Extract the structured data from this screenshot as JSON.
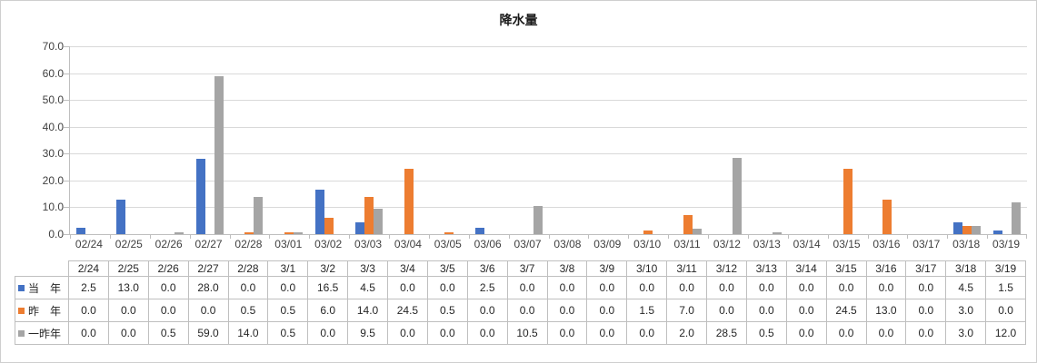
{
  "chart_data": {
    "type": "bar",
    "title": "降水量",
    "categories": [
      "02/24",
      "02/25",
      "02/26",
      "02/27",
      "02/28",
      "03/01",
      "03/02",
      "03/03",
      "03/04",
      "03/05",
      "03/06",
      "03/07",
      "03/08",
      "03/09",
      "03/10",
      "03/11",
      "03/12",
      "03/13",
      "03/14",
      "03/15",
      "03/16",
      "03/17",
      "03/18",
      "03/19"
    ],
    "table_categories": [
      "2/24",
      "2/25",
      "2/26",
      "2/27",
      "2/28",
      "3/1",
      "3/2",
      "3/3",
      "3/4",
      "3/5",
      "3/6",
      "3/7",
      "3/8",
      "3/9",
      "3/10",
      "3/11",
      "3/12",
      "3/13",
      "3/14",
      "3/15",
      "3/16",
      "3/17",
      "3/18",
      "3/19"
    ],
    "series": [
      {
        "name": "当　年",
        "color": "#4472C4",
        "values": [
          2.5,
          13.0,
          0.0,
          28.0,
          0.0,
          0.0,
          16.5,
          4.5,
          0.0,
          0.0,
          2.5,
          0.0,
          0.0,
          0.0,
          0.0,
          0.0,
          0.0,
          0.0,
          0.0,
          0.0,
          0.0,
          0.0,
          4.5,
          1.5
        ]
      },
      {
        "name": "昨　年",
        "color": "#ED7D31",
        "values": [
          0.0,
          0.0,
          0.0,
          0.0,
          0.5,
          0.5,
          6.0,
          14.0,
          24.5,
          0.5,
          0.0,
          0.0,
          0.0,
          0.0,
          1.5,
          7.0,
          0.0,
          0.0,
          0.0,
          24.5,
          13.0,
          0.0,
          3.0,
          0.0
        ]
      },
      {
        "name": "一昨年",
        "color": "#A5A5A5",
        "values": [
          0.0,
          0.0,
          0.5,
          59.0,
          14.0,
          0.5,
          0.0,
          9.5,
          0.0,
          0.0,
          0.0,
          10.5,
          0.0,
          0.0,
          0.0,
          2.0,
          28.5,
          0.5,
          0.0,
          0.0,
          0.0,
          0.0,
          3.0,
          12.0
        ]
      }
    ],
    "ylim": [
      0,
      70
    ],
    "yticks": [
      "70.0",
      "60.0",
      "50.0",
      "40.0",
      "30.0",
      "20.0",
      "10.0",
      "0.0"
    ],
    "grid": true,
    "legend_position": "table-rows",
    "value_decimals": 1,
    "colors": {
      "gridline": "#D9D9D9",
      "axis": "#BFBFBF",
      "table_border": "#BFBFBF"
    }
  }
}
